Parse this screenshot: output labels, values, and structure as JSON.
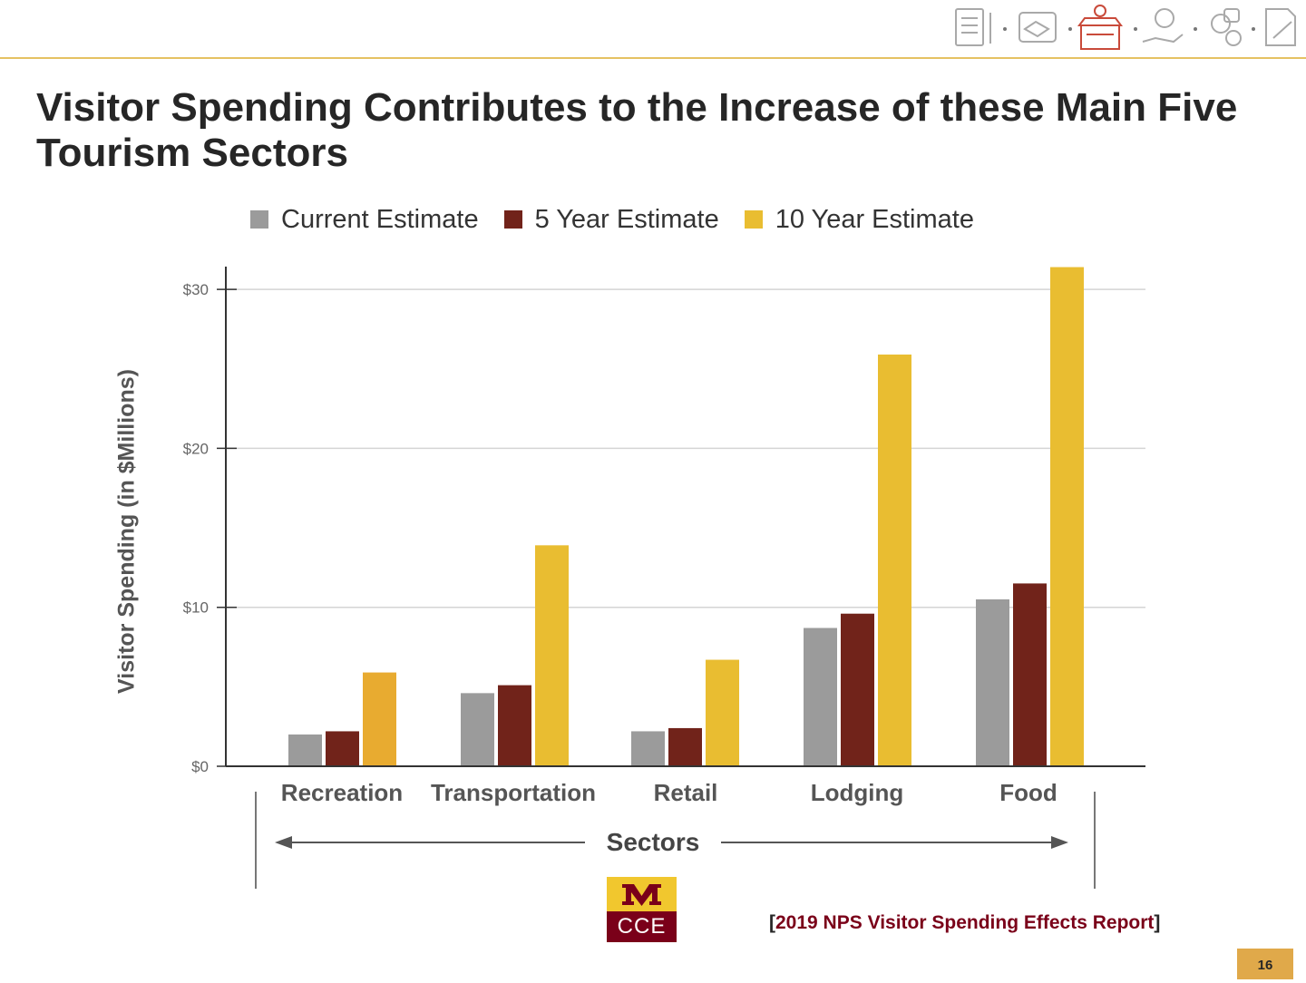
{
  "slide": {
    "title": "Visitor Spending Contributes to the Increase of these Main Five Tourism Sectors",
    "page_number": "16",
    "source": "2019 NPS Visitor Spending Effects Report",
    "logo_text": "CCE"
  },
  "header_icons": [
    "document-list-icon",
    "handshake-icon",
    "storefront-pin-icon",
    "money-hand-icon",
    "people-like-icon",
    "edit-document-icon"
  ],
  "colors": {
    "accent_rule": "#e5c262",
    "current": "#9b9b9b",
    "five_year": "#71231a",
    "ten_year": "#e9bd31",
    "ten_year_recreation": "#e8ab30",
    "maroon": "#7a0019",
    "gold": "#f1c72e"
  },
  "legend": {
    "current": "Current Estimate",
    "five_year": "5 Year Estimate",
    "ten_year": "10 Year Estimate"
  },
  "chart_data": {
    "type": "bar",
    "xlabel": "Sectors",
    "ylabel": "Visitor Spending (in $Millions)",
    "categories": [
      "Recreation",
      "Transportation",
      "Retail",
      "Lodging",
      "Food"
    ],
    "series": [
      {
        "name": "Current Estimate",
        "values": [
          2.0,
          4.6,
          2.2,
          8.7,
          10.5
        ]
      },
      {
        "name": "5 Year Estimate",
        "values": [
          2.2,
          5.1,
          2.4,
          9.6,
          11.5
        ]
      },
      {
        "name": "10 Year Estimate",
        "values": [
          5.9,
          13.9,
          6.7,
          25.9,
          31.4
        ]
      }
    ],
    "yticks": [
      "$0",
      "$10",
      "$20",
      "$30"
    ],
    "ytick_values": [
      0,
      10,
      20,
      30
    ],
    "ylim": [
      0,
      31.4
    ],
    "grid": true,
    "legend_position": "top"
  }
}
